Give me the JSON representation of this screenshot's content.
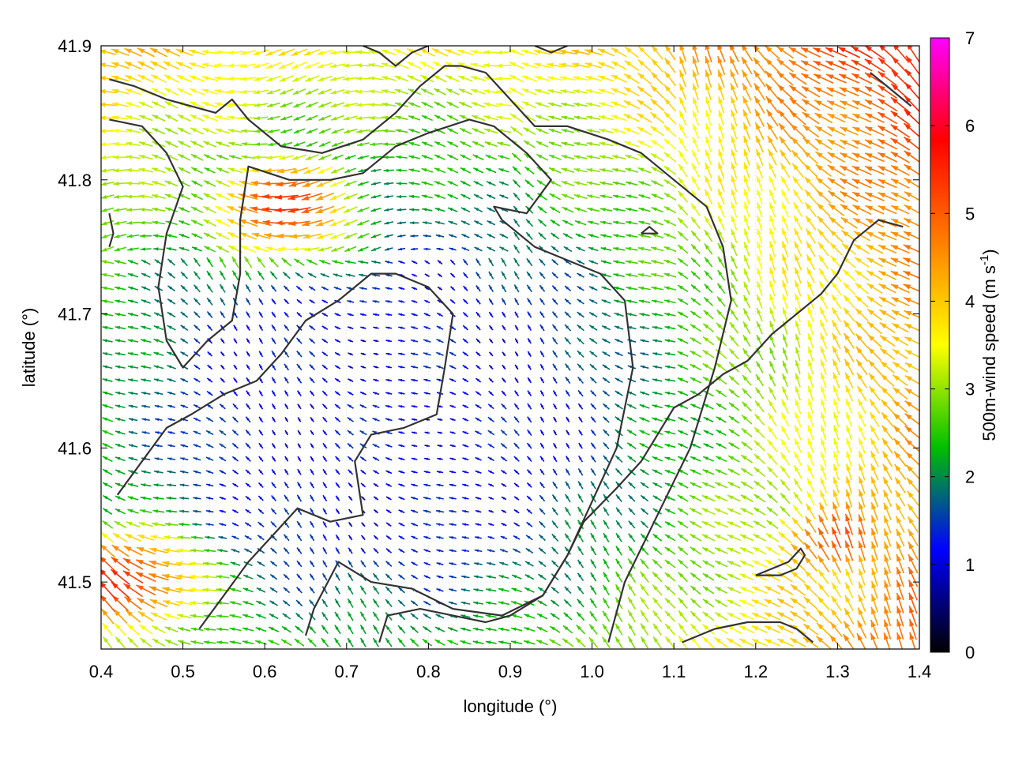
{
  "chart_data": {
    "type": "vector-field",
    "xlabel": "longitude (°)",
    "ylabel": "latitude (°)",
    "colorbar_label": "500m-wind speed (m s-1)",
    "colorbar_label_parts": {
      "main": "500m-wind speed (m s",
      "superscript": "-1",
      "close": ")"
    },
    "xlim": [
      0.4,
      1.4
    ],
    "ylim": [
      41.45,
      41.9
    ],
    "xticks": [
      "0.4",
      "0.5",
      "0.6",
      "0.7",
      "0.8",
      "0.9",
      "1.0",
      "1.1",
      "1.2",
      "1.3",
      "1.4"
    ],
    "yticks": [
      "41.5",
      "41.6",
      "41.7",
      "41.8",
      "41.9"
    ],
    "colorbar": {
      "range": [
        0,
        7
      ],
      "ticks": [
        "0",
        "1",
        "2",
        "3",
        "4",
        "5",
        "6",
        "7"
      ],
      "palette": [
        "#000000",
        "#0000ff",
        "#00c000",
        "#ffff00",
        "#ff8000",
        "#ff0000",
        "#ff00ff"
      ]
    },
    "grid": true,
    "field": {
      "nx": 64,
      "ny": 46,
      "dominant_direction": "northwest",
      "regions": [
        {
          "description": "weak blue winds, central basin",
          "lon": 0.75,
          "lat": 41.63,
          "speed": 0.7
        },
        {
          "description": "strong westward jet",
          "lon": 0.62,
          "lat": 41.78,
          "speed": 5.2
        },
        {
          "description": "strong southeast region",
          "lon": 1.3,
          "lat": 41.53,
          "speed": 5.0
        },
        {
          "description": "strong southwest corner",
          "lon": 0.43,
          "lat": 41.5,
          "speed": 5.5
        }
      ]
    },
    "contours": [
      [
        [
          0.41,
          41.875
        ],
        [
          0.44,
          41.87
        ],
        [
          0.48,
          41.86
        ],
        [
          0.51,
          41.855
        ],
        [
          0.54,
          41.85
        ],
        [
          0.56,
          41.86
        ],
        [
          0.58,
          41.845
        ],
        [
          0.62,
          41.825
        ],
        [
          0.67,
          41.82
        ],
        [
          0.72,
          41.83
        ],
        [
          0.76,
          41.85
        ],
        [
          0.79,
          41.87
        ],
        [
          0.82,
          41.885
        ],
        [
          0.84,
          41.885
        ],
        [
          0.87,
          41.88
        ],
        [
          0.9,
          41.86
        ],
        [
          0.93,
          41.84
        ],
        [
          0.97,
          41.84
        ],
        [
          1.02,
          41.83
        ],
        [
          1.06,
          41.82
        ],
        [
          1.1,
          41.8
        ],
        [
          1.14,
          41.78
        ],
        [
          1.16,
          41.75
        ],
        [
          1.17,
          41.71
        ],
        [
          1.15,
          41.66
        ],
        [
          1.12,
          41.6
        ],
        [
          1.08,
          41.55
        ],
        [
          1.04,
          41.5
        ],
        [
          1.02,
          41.455
        ]
      ],
      [
        [
          0.41,
          41.845
        ],
        [
          0.45,
          41.84
        ],
        [
          0.48,
          41.82
        ],
        [
          0.5,
          41.795
        ],
        [
          0.48,
          41.76
        ],
        [
          0.47,
          41.72
        ],
        [
          0.48,
          41.68
        ],
        [
          0.5,
          41.66
        ],
        [
          0.53,
          41.68
        ],
        [
          0.56,
          41.695
        ],
        [
          0.57,
          41.73
        ],
        [
          0.57,
          41.77
        ],
        [
          0.58,
          41.81
        ],
        [
          0.63,
          41.8
        ],
        [
          0.68,
          41.8
        ],
        [
          0.72,
          41.805
        ],
        [
          0.76,
          41.825
        ],
        [
          0.8,
          41.835
        ],
        [
          0.85,
          41.845
        ],
        [
          0.88,
          41.84
        ],
        [
          0.92,
          41.82
        ],
        [
          0.95,
          41.8
        ],
        [
          0.92,
          41.775
        ],
        [
          0.88,
          41.78
        ],
        [
          0.89,
          41.77
        ],
        [
          0.93,
          41.75
        ],
        [
          0.97,
          41.74
        ],
        [
          1.01,
          41.73
        ],
        [
          1.04,
          41.71
        ],
        [
          1.05,
          41.66
        ],
        [
          1.03,
          41.6
        ],
        [
          1.0,
          41.56
        ],
        [
          0.97,
          41.52
        ],
        [
          0.94,
          41.49
        ],
        [
          0.89,
          41.475
        ],
        [
          0.83,
          41.48
        ],
        [
          0.78,
          41.495
        ],
        [
          0.73,
          41.5
        ],
        [
          0.69,
          41.515
        ],
        [
          0.66,
          41.48
        ],
        [
          0.65,
          41.46
        ]
      ],
      [
        [
          0.42,
          41.565
        ],
        [
          0.45,
          41.59
        ],
        [
          0.48,
          41.615
        ],
        [
          0.51,
          41.625
        ],
        [
          0.55,
          41.64
        ],
        [
          0.59,
          41.65
        ],
        [
          0.62,
          41.67
        ],
        [
          0.65,
          41.695
        ],
        [
          0.69,
          41.71
        ],
        [
          0.73,
          41.73
        ],
        [
          0.76,
          41.73
        ],
        [
          0.8,
          41.72
        ],
        [
          0.83,
          41.7
        ],
        [
          0.82,
          41.66
        ],
        [
          0.81,
          41.625
        ],
        [
          0.77,
          41.615
        ],
        [
          0.73,
          41.61
        ],
        [
          0.71,
          41.59
        ],
        [
          0.72,
          41.55
        ],
        [
          0.68,
          41.545
        ],
        [
          0.64,
          41.555
        ],
        [
          0.61,
          41.535
        ],
        [
          0.58,
          41.515
        ],
        [
          0.55,
          41.49
        ],
        [
          0.52,
          41.465
        ]
      ],
      [
        [
          0.74,
          41.455
        ],
        [
          0.75,
          41.475
        ],
        [
          0.79,
          41.48
        ],
        [
          0.83,
          41.475
        ],
        [
          0.87,
          41.47
        ],
        [
          0.9,
          41.475
        ],
        [
          0.94,
          41.49
        ],
        [
          0.97,
          41.52
        ],
        [
          0.99,
          41.545
        ],
        [
          1.03,
          41.57
        ],
        [
          1.06,
          41.59
        ],
        [
          1.08,
          41.61
        ],
        [
          1.1,
          41.63
        ],
        [
          1.13,
          41.64
        ],
        [
          1.16,
          41.655
        ],
        [
          1.19,
          41.665
        ],
        [
          1.22,
          41.685
        ],
        [
          1.25,
          41.7
        ],
        [
          1.28,
          41.715
        ],
        [
          1.3,
          41.73
        ],
        [
          1.32,
          41.755
        ],
        [
          1.35,
          41.77
        ],
        [
          1.38,
          41.765
        ]
      ],
      [
        [
          1.11,
          41.455
        ],
        [
          1.15,
          41.465
        ],
        [
          1.19,
          41.47
        ],
        [
          1.23,
          41.47
        ],
        [
          1.25,
          41.465
        ],
        [
          1.27,
          41.455
        ]
      ],
      [
        [
          1.2,
          41.505
        ],
        [
          1.23,
          41.505
        ],
        [
          1.25,
          41.51
        ],
        [
          1.26,
          41.52
        ],
        [
          1.255,
          41.525
        ],
        [
          1.24,
          41.515
        ],
        [
          1.22,
          41.51
        ],
        [
          1.2,
          41.505
        ]
      ],
      [
        [
          0.41,
          41.775
        ],
        [
          0.415,
          41.76
        ],
        [
          0.41,
          41.75
        ]
      ],
      [
        [
          1.06,
          41.76
        ],
        [
          1.08,
          41.76
        ],
        [
          1.07,
          41.765
        ],
        [
          1.06,
          41.76
        ]
      ],
      [
        [
          0.72,
          41.9
        ],
        [
          0.74,
          41.895
        ],
        [
          0.76,
          41.885
        ],
        [
          0.78,
          41.895
        ],
        [
          0.8,
          41.9
        ]
      ],
      [
        [
          1.34,
          41.88
        ],
        [
          1.36,
          41.87
        ],
        [
          1.38,
          41.86
        ],
        [
          1.39,
          41.855
        ]
      ],
      [
        [
          0.93,
          41.9
        ],
        [
          0.95,
          41.895
        ],
        [
          0.97,
          41.9
        ]
      ]
    ]
  }
}
